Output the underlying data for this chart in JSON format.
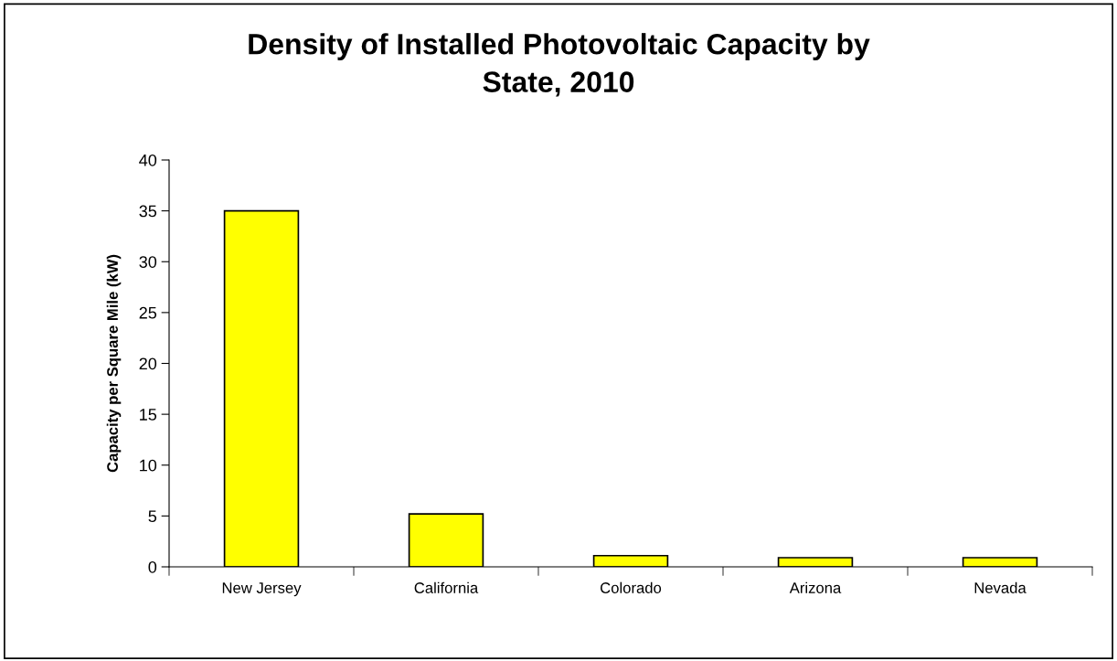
{
  "chart_data": {
    "type": "bar",
    "title": "Density of Installed Photovoltaic Capacity by\nState, 2010",
    "ylabel": "Capacity per Square Mile (kW)",
    "categories": [
      "New Jersey",
      "California",
      "Colorado",
      "Arizona",
      "Nevada"
    ],
    "values": [
      35,
      5.2,
      1.1,
      0.9,
      0.9
    ],
    "color": "#ffff00",
    "ylim": [
      0,
      40
    ],
    "yticks": [
      0,
      5,
      10,
      15,
      20,
      25,
      30,
      35,
      40
    ],
    "grid": false,
    "legend": false
  }
}
